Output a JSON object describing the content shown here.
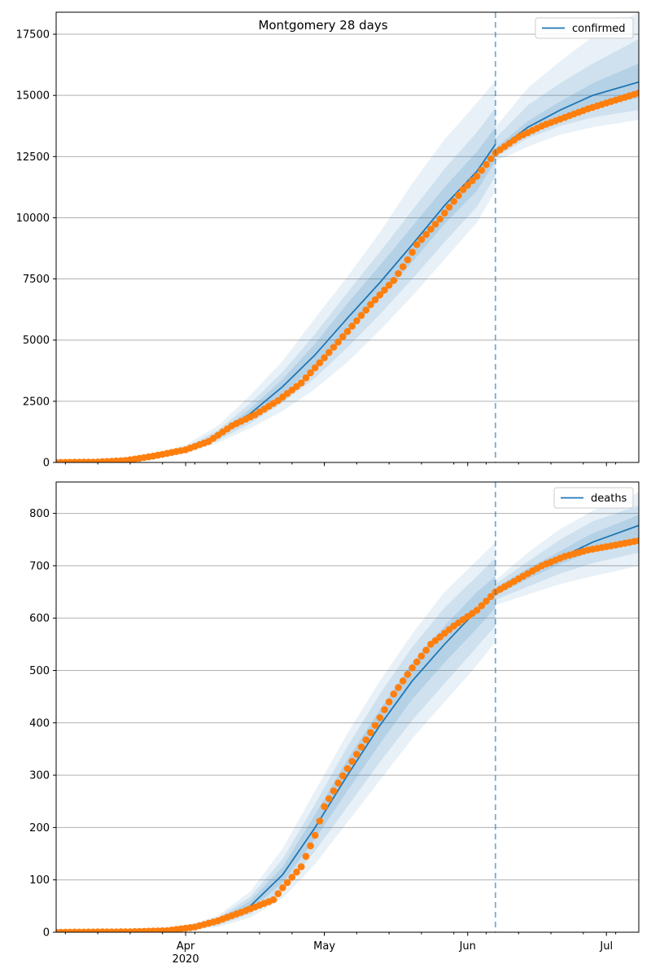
{
  "chart_data": [
    {
      "type": "line",
      "title": "Montgomery 28 days",
      "legend": {
        "label": "confirmed",
        "placement": "top-right"
      },
      "grid": "horizontal",
      "xlim": [
        "2020-03-04",
        "2020-07-08"
      ],
      "ylim": [
        0,
        18400
      ],
      "yticks": [
        0,
        2500,
        5000,
        7500,
        10000,
        12500,
        15000,
        17500
      ],
      "xticks": [
        {
          "date": "2020-04-01",
          "label": "Apr",
          "sublabel": ""
        },
        {
          "date": "2020-05-01",
          "label": "May",
          "sublabel": ""
        },
        {
          "date": "2020-06-01",
          "label": "Jun",
          "sublabel": ""
        },
        {
          "date": "2020-07-01",
          "label": "Jul",
          "sublabel": ""
        }
      ],
      "forecast_start": "2020-06-07",
      "observed_color": "#ff7f0e",
      "model_color": "#1f77b4",
      "observed": [
        [
          "2020-03-04",
          0
        ],
        [
          "2020-03-13",
          20
        ],
        [
          "2020-03-19",
          80
        ],
        [
          "2020-03-25",
          260
        ],
        [
          "2020-04-01",
          520
        ],
        [
          "2020-04-06",
          860
        ],
        [
          "2020-04-11",
          1500
        ],
        [
          "2020-04-16",
          1950
        ],
        [
          "2020-04-21",
          2530
        ],
        [
          "2020-04-26",
          3250
        ],
        [
          "2020-05-01",
          4280
        ],
        [
          "2020-05-06",
          5350
        ],
        [
          "2020-05-11",
          6450
        ],
        [
          "2020-05-16",
          7440
        ],
        [
          "2020-05-19",
          8280
        ],
        [
          "2020-05-21",
          8900
        ],
        [
          "2020-05-26",
          9950
        ],
        [
          "2020-05-31",
          11150
        ],
        [
          "2020-06-03",
          11700
        ],
        [
          "2020-06-07",
          12650
        ],
        [
          "2020-06-12",
          13300
        ],
        [
          "2020-06-17",
          13750
        ],
        [
          "2020-06-22",
          14100
        ],
        [
          "2020-06-27",
          14450
        ],
        [
          "2020-07-02",
          14750
        ],
        [
          "2020-07-08",
          15100
        ]
      ],
      "model": [
        [
          "2020-03-04",
          0
        ],
        [
          "2020-03-15",
          30
        ],
        [
          "2020-03-25",
          230
        ],
        [
          "2020-04-01",
          500
        ],
        [
          "2020-04-08",
          1100
        ],
        [
          "2020-04-15",
          2000
        ],
        [
          "2020-04-22",
          3100
        ],
        [
          "2020-04-29",
          4400
        ],
        [
          "2020-05-06",
          5900
        ],
        [
          "2020-05-13",
          7350
        ],
        [
          "2020-05-20",
          8900
        ],
        [
          "2020-05-27",
          10500
        ],
        [
          "2020-06-03",
          11900
        ],
        [
          "2020-06-07",
          13000
        ],
        [
          "2020-06-07",
          12700
        ],
        [
          "2020-06-14",
          13700
        ],
        [
          "2020-06-21",
          14400
        ],
        [
          "2020-06-28",
          15000
        ],
        [
          "2020-07-08",
          15550
        ]
      ],
      "bands": [
        {
          "opacity": 0.1,
          "points": [
            [
              "2020-03-25",
              150,
              330
            ],
            [
              "2020-04-01",
              380,
              720
            ],
            [
              "2020-04-08",
              800,
              1500
            ],
            [
              "2020-04-15",
              1400,
              2750
            ],
            [
              "2020-04-22",
              2100,
              4150
            ],
            [
              "2020-04-29",
              3000,
              5900
            ],
            [
              "2020-05-06",
              4100,
              7600
            ],
            [
              "2020-05-13",
              5400,
              9400
            ],
            [
              "2020-05-20",
              6800,
              11400
            ],
            [
              "2020-05-27",
              8300,
              13200
            ],
            [
              "2020-06-03",
              9800,
              14700
            ],
            [
              "2020-06-07",
              11100,
              15600
            ],
            [
              "2020-06-07",
              12300,
              13700
            ],
            [
              "2020-06-14",
              12900,
              15300
            ],
            [
              "2020-06-21",
              13400,
              16400
            ],
            [
              "2020-06-28",
              13700,
              17400
            ],
            [
              "2020-07-08",
              14000,
              18400
            ]
          ]
        },
        {
          "opacity": 0.12,
          "points": [
            [
              "2020-03-25",
              180,
              290
            ],
            [
              "2020-04-01",
              420,
              620
            ],
            [
              "2020-04-08",
              900,
              1320
            ],
            [
              "2020-04-15",
              1600,
              2420
            ],
            [
              "2020-04-22",
              2450,
              3700
            ],
            [
              "2020-04-29",
              3450,
              5250
            ],
            [
              "2020-05-06",
              4700,
              6950
            ],
            [
              "2020-05-13",
              6050,
              8600
            ],
            [
              "2020-05-20",
              7500,
              10300
            ],
            [
              "2020-05-27",
              9000,
              12000
            ],
            [
              "2020-06-03",
              10450,
              13500
            ],
            [
              "2020-06-07",
              11700,
              14500
            ],
            [
              "2020-06-07",
              12450,
              13250
            ],
            [
              "2020-06-14",
              13250,
              14600
            ],
            [
              "2020-06-21",
              13750,
              15500
            ],
            [
              "2020-06-28",
              14100,
              16300
            ],
            [
              "2020-07-08",
              14400,
              17300
            ]
          ]
        },
        {
          "opacity": 0.15,
          "points": [
            [
              "2020-03-25",
              205,
              260
            ],
            [
              "2020-04-01",
              460,
              560
            ],
            [
              "2020-04-08",
              990,
              1210
            ],
            [
              "2020-04-15",
              1800,
              2200
            ],
            [
              "2020-04-22",
              2800,
              3400
            ],
            [
              "2020-04-29",
              3950,
              4850
            ],
            [
              "2020-05-06",
              5300,
              6500
            ],
            [
              "2020-05-13",
              6700,
              8050
            ],
            [
              "2020-05-20",
              8200,
              9650
            ],
            [
              "2020-05-27",
              9750,
              11250
            ],
            [
              "2020-06-03",
              11100,
              12700
            ],
            [
              "2020-06-07",
              12300,
              13700
            ],
            [
              "2020-06-07",
              12580,
              12850
            ],
            [
              "2020-06-14",
              13480,
              13950
            ],
            [
              "2020-06-21",
              14050,
              14750
            ],
            [
              "2020-06-28",
              14500,
              15500
            ],
            [
              "2020-07-08",
              14900,
              16300
            ]
          ]
        }
      ]
    },
    {
      "type": "line",
      "title": "",
      "legend": {
        "label": "deaths",
        "placement": "top-right"
      },
      "grid": "horizontal",
      "xlim": [
        "2020-03-04",
        "2020-07-08"
      ],
      "ylim": [
        0,
        860
      ],
      "yticks": [
        0,
        100,
        200,
        300,
        400,
        500,
        600,
        700,
        800
      ],
      "xticks": [
        {
          "date": "2020-04-01",
          "label": "Apr",
          "sublabel": "2020"
        },
        {
          "date": "2020-05-01",
          "label": "May",
          "sublabel": ""
        },
        {
          "date": "2020-06-01",
          "label": "Jun",
          "sublabel": ""
        },
        {
          "date": "2020-07-01",
          "label": "Jul",
          "sublabel": ""
        }
      ],
      "forecast_start": "2020-06-07",
      "observed_color": "#ff7f0e",
      "model_color": "#1f77b4",
      "observed": [
        [
          "2020-03-04",
          0
        ],
        [
          "2020-03-20",
          1
        ],
        [
          "2020-03-28",
          3
        ],
        [
          "2020-04-03",
          10
        ],
        [
          "2020-04-08",
          22
        ],
        [
          "2020-04-13",
          38
        ],
        [
          "2020-04-18",
          55
        ],
        [
          "2020-04-20",
          62
        ],
        [
          "2020-04-22",
          85
        ],
        [
          "2020-04-26",
          125
        ],
        [
          "2020-04-29",
          185
        ],
        [
          "2020-05-01",
          240
        ],
        [
          "2020-05-04",
          285
        ],
        [
          "2020-05-08",
          340
        ],
        [
          "2020-05-12",
          395
        ],
        [
          "2020-05-16",
          455
        ],
        [
          "2020-05-20",
          505
        ],
        [
          "2020-05-24",
          550
        ],
        [
          "2020-05-29",
          585
        ],
        [
          "2020-06-03",
          615
        ],
        [
          "2020-06-07",
          650
        ],
        [
          "2020-06-12",
          675
        ],
        [
          "2020-06-17",
          700
        ],
        [
          "2020-06-22",
          718
        ],
        [
          "2020-06-27",
          730
        ],
        [
          "2020-07-02",
          738
        ],
        [
          "2020-07-08",
          748
        ]
      ],
      "model": [
        [
          "2020-03-04",
          0
        ],
        [
          "2020-03-25",
          2
        ],
        [
          "2020-04-01",
          6
        ],
        [
          "2020-04-08",
          20
        ],
        [
          "2020-04-15",
          50
        ],
        [
          "2020-04-22",
          110
        ],
        [
          "2020-04-29",
          200
        ],
        [
          "2020-05-06",
          300
        ],
        [
          "2020-05-13",
          395
        ],
        [
          "2020-05-20",
          480
        ],
        [
          "2020-05-27",
          550
        ],
        [
          "2020-06-03",
          615
        ],
        [
          "2020-06-07",
          650
        ],
        [
          "2020-06-14",
          685
        ],
        [
          "2020-06-21",
          715
        ],
        [
          "2020-06-28",
          745
        ],
        [
          "2020-07-08",
          777
        ]
      ],
      "bands": [
        {
          "opacity": 0.1,
          "points": [
            [
              "2020-03-28",
              1,
              6
            ],
            [
              "2020-04-01",
              3,
              12
            ],
            [
              "2020-04-08",
              10,
              32
            ],
            [
              "2020-04-15",
              28,
              78
            ],
            [
              "2020-04-22",
              65,
              160
            ],
            [
              "2020-04-29",
              130,
              270
            ],
            [
              "2020-05-06",
              210,
              380
            ],
            [
              "2020-05-13",
              290,
              480
            ],
            [
              "2020-05-20",
              370,
              570
            ],
            [
              "2020-05-27",
              440,
              650
            ],
            [
              "2020-06-03",
              510,
              710
            ],
            [
              "2020-06-07",
              555,
              745
            ],
            [
              "2020-06-07",
              625,
              672
            ],
            [
              "2020-06-14",
              645,
              725
            ],
            [
              "2020-06-21",
              665,
              770
            ],
            [
              "2020-06-28",
              680,
              805
            ],
            [
              "2020-07-08",
              700,
              840
            ]
          ]
        },
        {
          "opacity": 0.12,
          "points": [
            [
              "2020-03-28",
              2,
              5
            ],
            [
              "2020-04-01",
              4,
              10
            ],
            [
              "2020-04-08",
              13,
              28
            ],
            [
              "2020-04-15",
              35,
              68
            ],
            [
              "2020-04-22",
              80,
              140
            ],
            [
              "2020-04-29",
              155,
              245
            ],
            [
              "2020-05-06",
              240,
              355
            ],
            [
              "2020-05-13",
              325,
              455
            ],
            [
              "2020-05-20",
              405,
              545
            ],
            [
              "2020-05-27",
              475,
              620
            ],
            [
              "2020-06-03",
              545,
              680
            ],
            [
              "2020-06-07",
              585,
              715
            ],
            [
              "2020-06-07",
              635,
              665
            ],
            [
              "2020-06-14",
              660,
              708
            ],
            [
              "2020-06-21",
              685,
              750
            ],
            [
              "2020-06-28",
              705,
              785
            ],
            [
              "2020-07-08",
              725,
              815
            ]
          ]
        },
        {
          "opacity": 0.15,
          "points": [
            [
              "2020-03-28",
              2,
              4
            ],
            [
              "2020-04-01",
              5,
              8
            ],
            [
              "2020-04-08",
              16,
              25
            ],
            [
              "2020-04-15",
              42,
              60
            ],
            [
              "2020-04-22",
              95,
              125
            ],
            [
              "2020-04-29",
              178,
              225
            ],
            [
              "2020-05-06",
              270,
              330
            ],
            [
              "2020-05-13",
              360,
              425
            ],
            [
              "2020-05-20",
              445,
              515
            ],
            [
              "2020-05-27",
              515,
              585
            ],
            [
              "2020-06-03",
              580,
              650
            ],
            [
              "2020-06-07",
              620,
              680
            ],
            [
              "2020-06-07",
              643,
              658
            ],
            [
              "2020-06-14",
              675,
              695
            ],
            [
              "2020-06-21",
              703,
              728
            ],
            [
              "2020-06-28",
              728,
              762
            ],
            [
              "2020-07-08",
              752,
              797
            ]
          ]
        }
      ]
    }
  ]
}
